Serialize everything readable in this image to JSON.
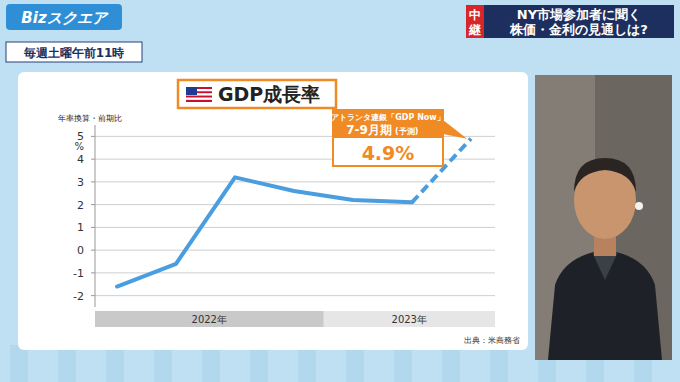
{
  "header": {
    "logo": "Bizスクエア",
    "schedule": "毎週土曜午前11時",
    "badge": "中継",
    "headline": [
      "NY市場参加者に聞く",
      "株価・金利の見通しは?"
    ]
  },
  "chart_data": {
    "type": "line",
    "title": "GDP成長率",
    "subtitle": "年率換算・前期比",
    "ylabel": "%",
    "source": "出典：米商務省",
    "categories": [
      null,
      null,
      null,
      null,
      null,
      null,
      null
    ],
    "x_groups": [
      {
        "label": "2022年",
        "start": 0,
        "end": 3
      },
      {
        "label": "2023年",
        "start": 4,
        "end": 6
      }
    ],
    "series": [
      {
        "color": "#4a9ee0",
        "line_style": "solid",
        "values": [
          -1.6,
          -0.6,
          3.2,
          2.6,
          2.2,
          2.1,
          null
        ]
      },
      {
        "color": "#4a9ee0",
        "line_style": "dashed",
        "values": [
          null,
          null,
          null,
          null,
          null,
          2.1,
          4.9
        ],
        "value_labels": [
          null,
          null,
          null,
          null,
          null,
          null,
          "4.9%"
        ]
      }
    ],
    "annotation": {
      "heading": "アトランタ連銀「GDP Now」",
      "period": "7-9月期",
      "period_note": "(予測)"
    },
    "ylim": [
      -2.5,
      5.5
    ],
    "yticks": [
      -2,
      -1,
      0,
      1,
      2,
      3,
      4,
      5
    ],
    "grid": true
  }
}
